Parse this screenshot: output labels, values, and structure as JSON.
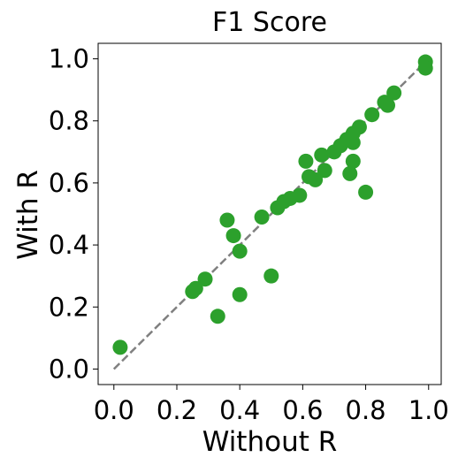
{
  "chart_data": {
    "type": "scatter",
    "title": "F1 Score",
    "xlabel": "Without R",
    "ylabel": "With R",
    "xlim": [
      -0.05,
      1.04
    ],
    "ylim": [
      -0.05,
      1.05
    ],
    "xticks": [
      0.0,
      0.2,
      0.4,
      0.6,
      0.8,
      1.0
    ],
    "yticks": [
      0.0,
      0.2,
      0.4,
      0.6,
      0.8,
      1.0
    ],
    "xtick_labels": [
      "0.0",
      "0.2",
      "0.4",
      "0.6",
      "0.8",
      "1.0"
    ],
    "ytick_labels": [
      "0.0",
      "0.2",
      "0.4",
      "0.6",
      "0.8",
      "1.0"
    ],
    "grid": false,
    "point_color": "#2ca02c",
    "reference_line": {
      "style": "dashed",
      "color": "#808080",
      "from": [
        0,
        0
      ],
      "to": [
        1,
        1
      ]
    },
    "points": [
      {
        "x": 0.02,
        "y": 0.07
      },
      {
        "x": 0.25,
        "y": 0.25
      },
      {
        "x": 0.26,
        "y": 0.26
      },
      {
        "x": 0.29,
        "y": 0.29
      },
      {
        "x": 0.33,
        "y": 0.17
      },
      {
        "x": 0.36,
        "y": 0.48
      },
      {
        "x": 0.38,
        "y": 0.43
      },
      {
        "x": 0.4,
        "y": 0.38
      },
      {
        "x": 0.4,
        "y": 0.24
      },
      {
        "x": 0.47,
        "y": 0.49
      },
      {
        "x": 0.5,
        "y": 0.3
      },
      {
        "x": 0.52,
        "y": 0.52
      },
      {
        "x": 0.54,
        "y": 0.54
      },
      {
        "x": 0.56,
        "y": 0.55
      },
      {
        "x": 0.59,
        "y": 0.56
      },
      {
        "x": 0.61,
        "y": 0.67
      },
      {
        "x": 0.62,
        "y": 0.62
      },
      {
        "x": 0.64,
        "y": 0.61
      },
      {
        "x": 0.66,
        "y": 0.69
      },
      {
        "x": 0.67,
        "y": 0.64
      },
      {
        "x": 0.7,
        "y": 0.7
      },
      {
        "x": 0.72,
        "y": 0.72
      },
      {
        "x": 0.74,
        "y": 0.74
      },
      {
        "x": 0.75,
        "y": 0.63
      },
      {
        "x": 0.76,
        "y": 0.67
      },
      {
        "x": 0.76,
        "y": 0.73
      },
      {
        "x": 0.76,
        "y": 0.76
      },
      {
        "x": 0.78,
        "y": 0.78
      },
      {
        "x": 0.8,
        "y": 0.57
      },
      {
        "x": 0.82,
        "y": 0.82
      },
      {
        "x": 0.86,
        "y": 0.86
      },
      {
        "x": 0.87,
        "y": 0.85
      },
      {
        "x": 0.89,
        "y": 0.89
      },
      {
        "x": 0.99,
        "y": 0.99
      },
      {
        "x": 0.99,
        "y": 0.97
      }
    ]
  }
}
